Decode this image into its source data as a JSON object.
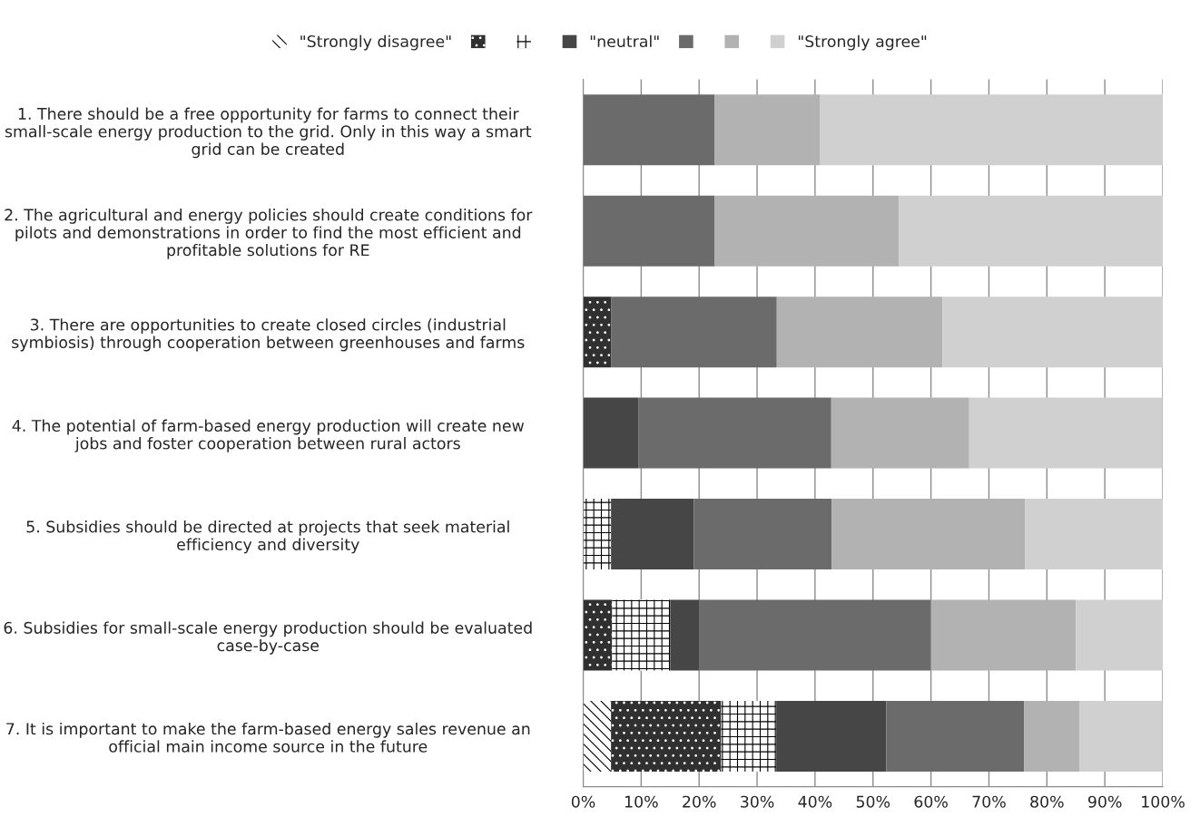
{
  "chart_data": {
    "type": "bar",
    "orientation": "horizontal",
    "stacked": true,
    "categories": [
      "1. There should be a free opportunity for farms to connect their\nsmall-scale energy production to the grid. Only in this way a smart\ngrid can be created",
      "2. The agricultural and energy policies should create conditions for\npilots and demonstrations in order to find the most efficient and\nprofitable solutions for RE",
      "3. There are opportunities to create closed circles (industrial\nsymbiosis) through cooperation between greenhouses and farms",
      "4. The potential of farm-based energy production will create new\njobs and foster cooperation between rural actors",
      "5. Subsidies should be directed at projects that seek material\nefficiency and diversity",
      "6. Subsidies for small-scale energy production should be evaluated\ncase-by-case",
      "7. It is important to make the farm-based energy sales revenue an\nofficial main income source in the future"
    ],
    "series": [
      {
        "name": "\"Strongly disagree\"",
        "color": "#ffffff",
        "values": [
          0,
          0,
          0,
          0,
          0,
          0,
          4.8
        ]
      },
      {
        "name": null,
        "color": "#303030",
        "values": [
          0,
          0,
          4.8,
          0,
          0,
          5,
          19.0
        ]
      },
      {
        "name": null,
        "color": "#fefefe",
        "values": [
          0,
          0,
          0,
          0,
          4.8,
          10,
          9.5
        ]
      },
      {
        "name": "\"neutral\"",
        "color": "#464646",
        "values": [
          0,
          0,
          0,
          9.5,
          14.3,
          5,
          19.0
        ]
      },
      {
        "name": null,
        "color": "#6b6b6b",
        "values": [
          22.7,
          22.7,
          28.6,
          33.3,
          23.8,
          40,
          23.8
        ]
      },
      {
        "name": null,
        "color": "#b2b2b2",
        "values": [
          18.2,
          31.8,
          28.6,
          23.8,
          33.3,
          25,
          9.5
        ]
      },
      {
        "name": "\"Strongly agree\"",
        "color": "#d0d0d0",
        "values": [
          59.1,
          45.5,
          38.1,
          33.3,
          23.8,
          15,
          14.3
        ]
      }
    ],
    "xlim": [
      0,
      100
    ],
    "xticks": [
      {
        "value": 0,
        "label": "0%"
      },
      {
        "value": 10,
        "label": "10%"
      },
      {
        "value": 20,
        "label": "20%"
      },
      {
        "value": 30,
        "label": "30%"
      },
      {
        "value": 40,
        "label": "40%"
      },
      {
        "value": 50,
        "label": "50%"
      },
      {
        "value": 60,
        "label": "60%"
      },
      {
        "value": 70,
        "label": "70%"
      },
      {
        "value": 80,
        "label": "80%"
      },
      {
        "value": 90,
        "label": "90%"
      },
      {
        "value": 100,
        "label": "100%"
      }
    ],
    "grid": "x",
    "legend": "top"
  }
}
